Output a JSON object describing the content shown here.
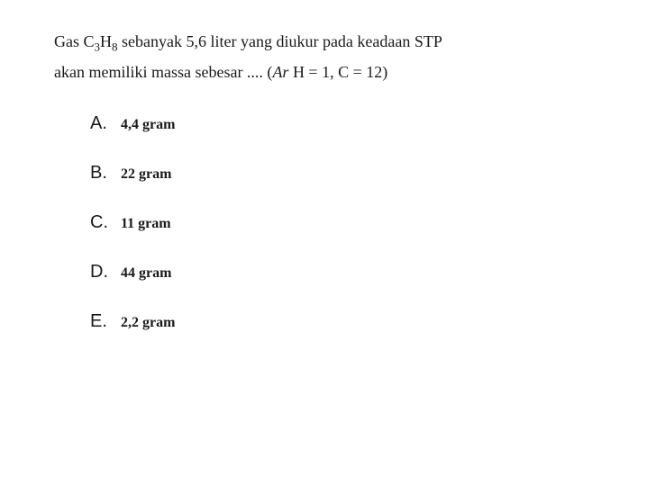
{
  "question": {
    "line1_pre": "Gas C",
    "sub1": "3",
    "line1_mid": "H",
    "sub2": "8",
    "line1_post": " sebanyak 5,6 liter yang diukur pada keadaan STP",
    "line2_pre": "akan memiliki massa sebesar .... (",
    "ar_italic": "Ar",
    "line2_post": " H = 1, C = 12)"
  },
  "options": [
    {
      "letter": "A.",
      "text": "4,4 gram"
    },
    {
      "letter": "B.",
      "text": "22 gram"
    },
    {
      "letter": "C.",
      "text": "11 gram"
    },
    {
      "letter": "D.",
      "text": "44 gram"
    },
    {
      "letter": "E.",
      "text": "2,2 gram"
    }
  ],
  "styling": {
    "background_color": "#ffffff",
    "text_color": "#1a1a1a",
    "question_fontsize": 18,
    "option_letter_fontsize": 20,
    "option_text_fontsize": 16,
    "font_family_question": "Georgia, serif",
    "font_family_letter": "Arial, sans-serif",
    "option_spacing": 32,
    "options_indent": 40
  }
}
